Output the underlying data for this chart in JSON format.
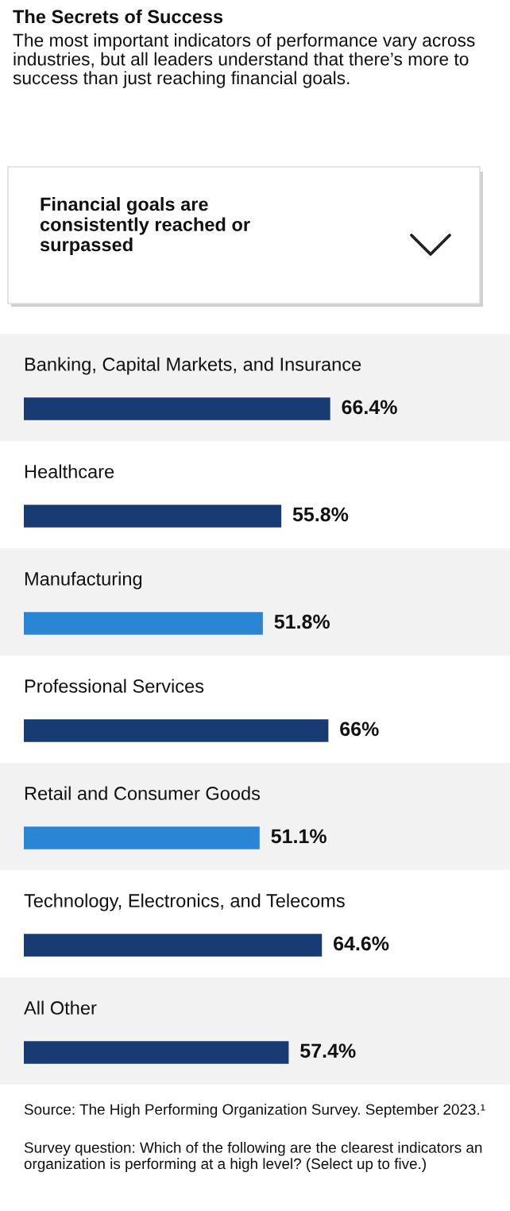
{
  "chart_data": {
    "type": "bar",
    "orientation": "horizontal",
    "title": "The Secrets of Success",
    "subtitle": "The most important indicators of performance vary across industries, but all leaders understand that there’s more to success than just reaching financial goals.",
    "categories": [
      "Banking, Capital Markets, and Insurance",
      "Healthcare",
      "Manufacturing",
      "Professional Services",
      "Retail and Consumer Goods",
      "Technology, Electronics, and Telecoms",
      "All Other"
    ],
    "values": [
      66.4,
      55.8,
      51.8,
      66,
      51.1,
      64.6,
      57.4
    ],
    "value_labels": [
      "66.4%",
      "55.8%",
      "51.8%",
      "66%",
      "51.1%",
      "64.6%",
      "57.4%"
    ],
    "colors": [
      "#173b72",
      "#173b72",
      "#2a86d4",
      "#173b72",
      "#2a86d4",
      "#173b72",
      "#173b72"
    ],
    "tick_labels": "y",
    "annotations": [
      "Financial goals are consistently reached or surpassed",
      "Source: The High Performing Organization Survey. September 2023.¹",
      "Survey question: Which of the following are the clearest indicators an organization is performing at a high level? (Select up to five.)"
    ]
  }
}
